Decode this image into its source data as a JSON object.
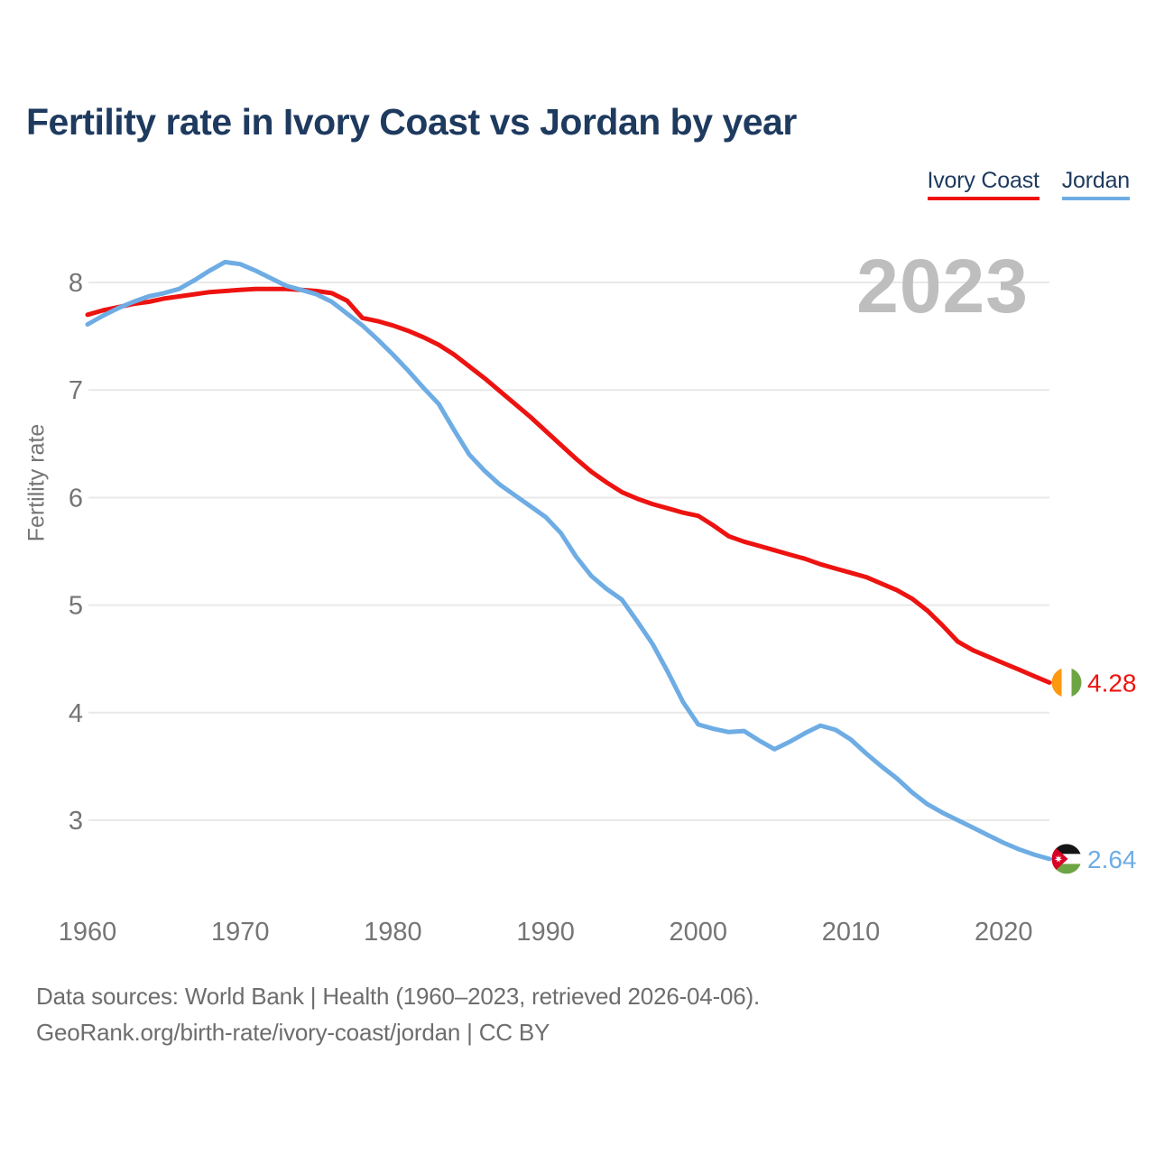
{
  "title": "Fertility rate in Ivory Coast vs Jordan by year",
  "watermark": "2023",
  "y_axis_label": "Fertility rate",
  "legend": {
    "items": [
      {
        "label": "Ivory Coast",
        "color": "#ED1310"
      },
      {
        "label": "Jordan",
        "color": "#6EACE4"
      }
    ]
  },
  "source": {
    "line1": "Data sources: World Bank | Health (1960–2023, retrieved 2026-04-06).",
    "line2": "GeoRank.org/birth-rate/ivory-coast/jordan | CC BY"
  },
  "chart_data": {
    "type": "line",
    "x_start": 1960,
    "x_end": 2023,
    "xlim": [
      1960,
      2023
    ],
    "ylim": [
      2.4,
      8.4
    ],
    "grid": "horizontal",
    "grid_color": "#E9E9E9",
    "tick_color": "#757575",
    "watermark_color": "#BEBEBE",
    "legend_position": "top-right",
    "xticks": [
      1960,
      1970,
      1980,
      1990,
      2000,
      2010,
      2020
    ],
    "yticks": [
      8,
      7,
      6,
      5,
      4,
      3
    ],
    "series": [
      {
        "id": "ivory-coast",
        "name": "Ivory Coast",
        "color": "#ED1310",
        "flag": "ivory-coast",
        "end_label": "4.28",
        "flag_colors": {
          "orange": "#FF9811",
          "white": "#FFFFFF",
          "green": "#6DA544"
        },
        "values": [
          7.7,
          7.74,
          7.77,
          7.8,
          7.82,
          7.85,
          7.87,
          7.89,
          7.91,
          7.92,
          7.93,
          7.94,
          7.94,
          7.94,
          7.93,
          7.92,
          7.9,
          7.83,
          7.67,
          7.64,
          7.6,
          7.55,
          7.49,
          7.42,
          7.33,
          7.22,
          7.11,
          6.99,
          6.87,
          6.75,
          6.62,
          6.49,
          6.36,
          6.24,
          6.14,
          6.05,
          5.99,
          5.94,
          5.9,
          5.86,
          5.83,
          5.74,
          5.64,
          5.59,
          5.55,
          5.51,
          5.47,
          5.43,
          5.38,
          5.34,
          5.3,
          5.26,
          5.2,
          5.14,
          5.06,
          4.95,
          4.81,
          4.66,
          4.58,
          4.52,
          4.46,
          4.4,
          4.34,
          4.28
        ]
      },
      {
        "id": "jordan",
        "name": "Jordan",
        "color": "#6EACE4",
        "flag": "jordan",
        "end_label": "2.64",
        "flag_colors": {
          "black": "#151515",
          "white": "#FFFFFF",
          "green": "#6DA544",
          "red": "#D80027"
        },
        "values": [
          7.61,
          7.69,
          7.76,
          7.82,
          7.87,
          7.9,
          7.94,
          8.02,
          8.11,
          8.19,
          8.17,
          8.11,
          8.04,
          7.97,
          7.93,
          7.89,
          7.82,
          7.71,
          7.6,
          7.47,
          7.33,
          7.18,
          7.02,
          6.87,
          6.63,
          6.4,
          6.25,
          6.12,
          6.02,
          5.92,
          5.82,
          5.67,
          5.45,
          5.27,
          5.15,
          5.05,
          4.85,
          4.64,
          4.38,
          4.1,
          3.89,
          3.85,
          3.82,
          3.83,
          3.74,
          3.66,
          3.73,
          3.81,
          3.88,
          3.84,
          3.75,
          3.62,
          3.5,
          3.39,
          3.26,
          3.15,
          3.07,
          3.0,
          2.93,
          2.86,
          2.79,
          2.73,
          2.68,
          2.64
        ]
      }
    ]
  }
}
